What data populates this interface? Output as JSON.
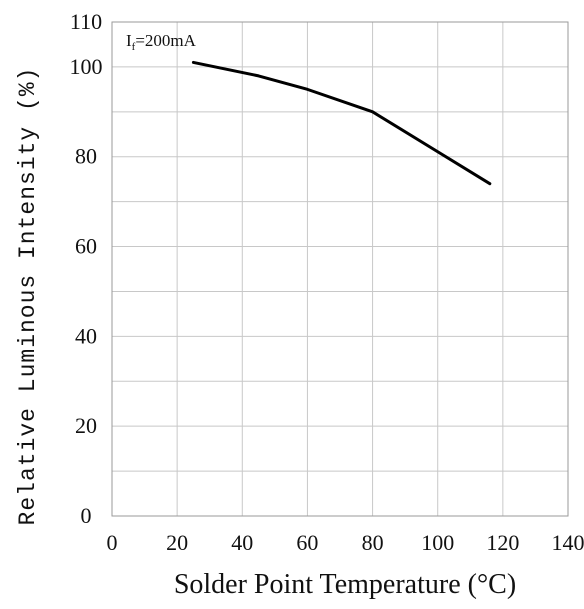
{
  "chart_data": {
    "type": "line",
    "xlabel": "Solder Point Temperature (°C)",
    "ylabel": "Relative Luminous Intensity (%)",
    "xlim": [
      0,
      140
    ],
    "ylim": [
      0,
      110
    ],
    "x_ticks": [
      "0",
      "20",
      "40",
      "60",
      "80",
      "100",
      "120",
      "140"
    ],
    "y_ticks": [
      "0",
      "20",
      "40",
      "60",
      "80",
      "100",
      "110"
    ],
    "annotation": {
      "main": "I",
      "subscript": "f",
      "rest": "=200mA"
    },
    "grid": true,
    "series": [
      {
        "x": [
          25,
          45,
          60,
          80,
          98,
          116
        ],
        "y": [
          101,
          98,
          95,
          90,
          82,
          74
        ]
      }
    ],
    "line_color": "#000000",
    "grid_color": "#c8c8c8"
  }
}
